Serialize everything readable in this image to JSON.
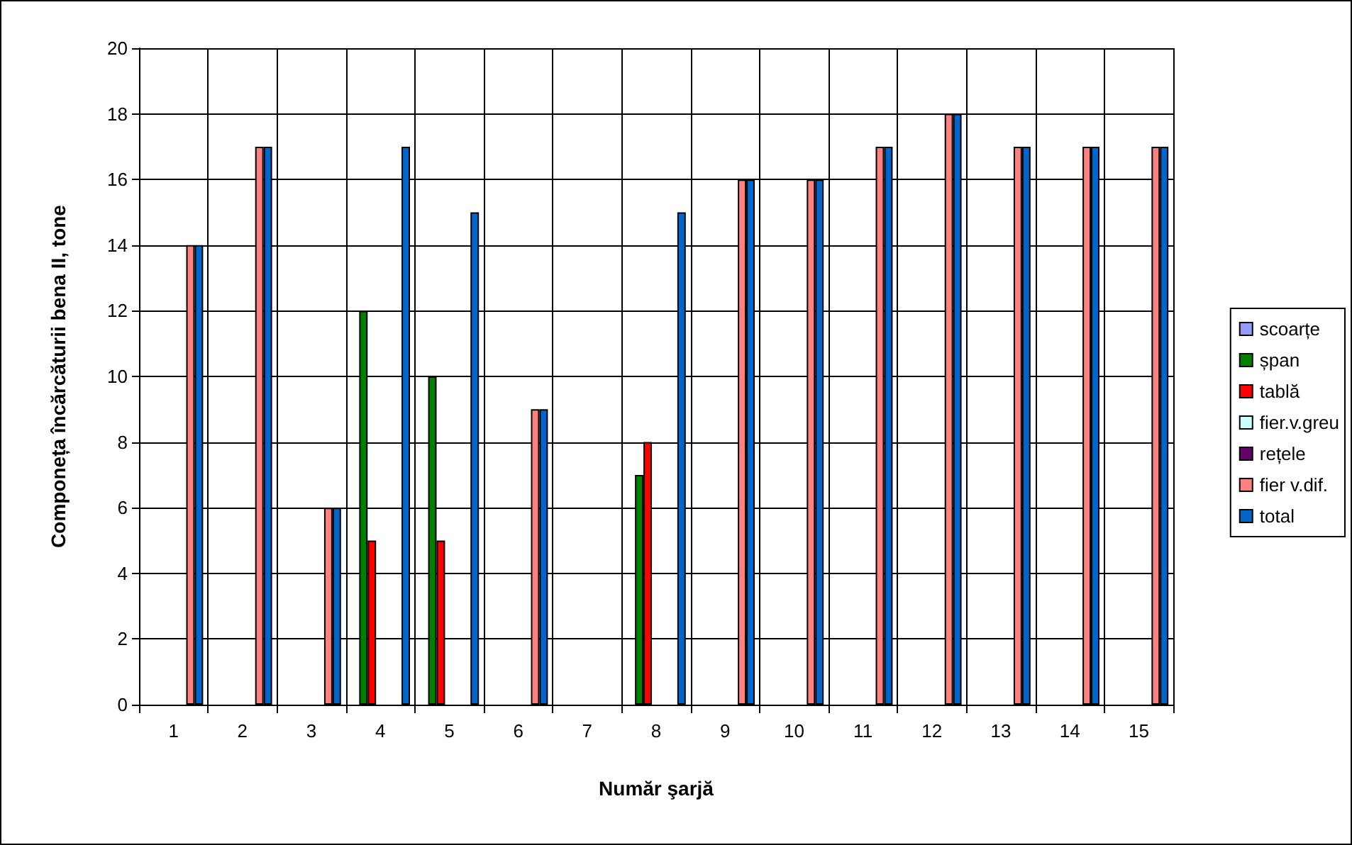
{
  "chart_data": {
    "type": "bar",
    "xlabel": "Număr şarjă",
    "ylabel": "Componeța încărcăturii bena II, tone",
    "categories": [
      "1",
      "2",
      "3",
      "4",
      "5",
      "6",
      "7",
      "8",
      "9",
      "10",
      "11",
      "12",
      "13",
      "14",
      "15"
    ],
    "series": [
      {
        "name": "scoarțe",
        "color": "#9999ff",
        "values": [
          null,
          null,
          null,
          null,
          null,
          null,
          null,
          null,
          null,
          null,
          null,
          null,
          null,
          null,
          null
        ]
      },
      {
        "name": "șpan",
        "color": "#008000",
        "values": [
          null,
          null,
          null,
          12,
          10,
          null,
          null,
          7,
          null,
          null,
          null,
          null,
          null,
          null,
          null
        ]
      },
      {
        "name": "tablă",
        "color": "#ff0000",
        "values": [
          null,
          null,
          null,
          5,
          5,
          null,
          null,
          8,
          null,
          null,
          null,
          null,
          null,
          null,
          null
        ]
      },
      {
        "name": "fier.v.greu",
        "color": "#ccffff",
        "values": [
          null,
          null,
          null,
          null,
          null,
          null,
          null,
          null,
          null,
          null,
          null,
          null,
          null,
          null,
          null
        ]
      },
      {
        "name": "rețele",
        "color": "#660066",
        "values": [
          null,
          null,
          null,
          null,
          null,
          null,
          null,
          null,
          null,
          null,
          null,
          null,
          null,
          null,
          null
        ]
      },
      {
        "name": "fier v.dif.",
        "color": "#ff8080",
        "values": [
          14,
          17,
          6,
          null,
          null,
          9,
          null,
          null,
          16,
          16,
          17,
          18,
          17,
          17,
          17
        ]
      },
      {
        "name": "total",
        "color": "#0066cc",
        "values": [
          14,
          17,
          6,
          17,
          15,
          9,
          null,
          15,
          16,
          16,
          17,
          18,
          17,
          17,
          17
        ]
      }
    ],
    "ylim": [
      0,
      20
    ],
    "yticks": [
      0,
      2,
      4,
      6,
      8,
      10,
      12,
      14,
      16,
      18,
      20
    ],
    "grid": true,
    "legend": "right"
  }
}
